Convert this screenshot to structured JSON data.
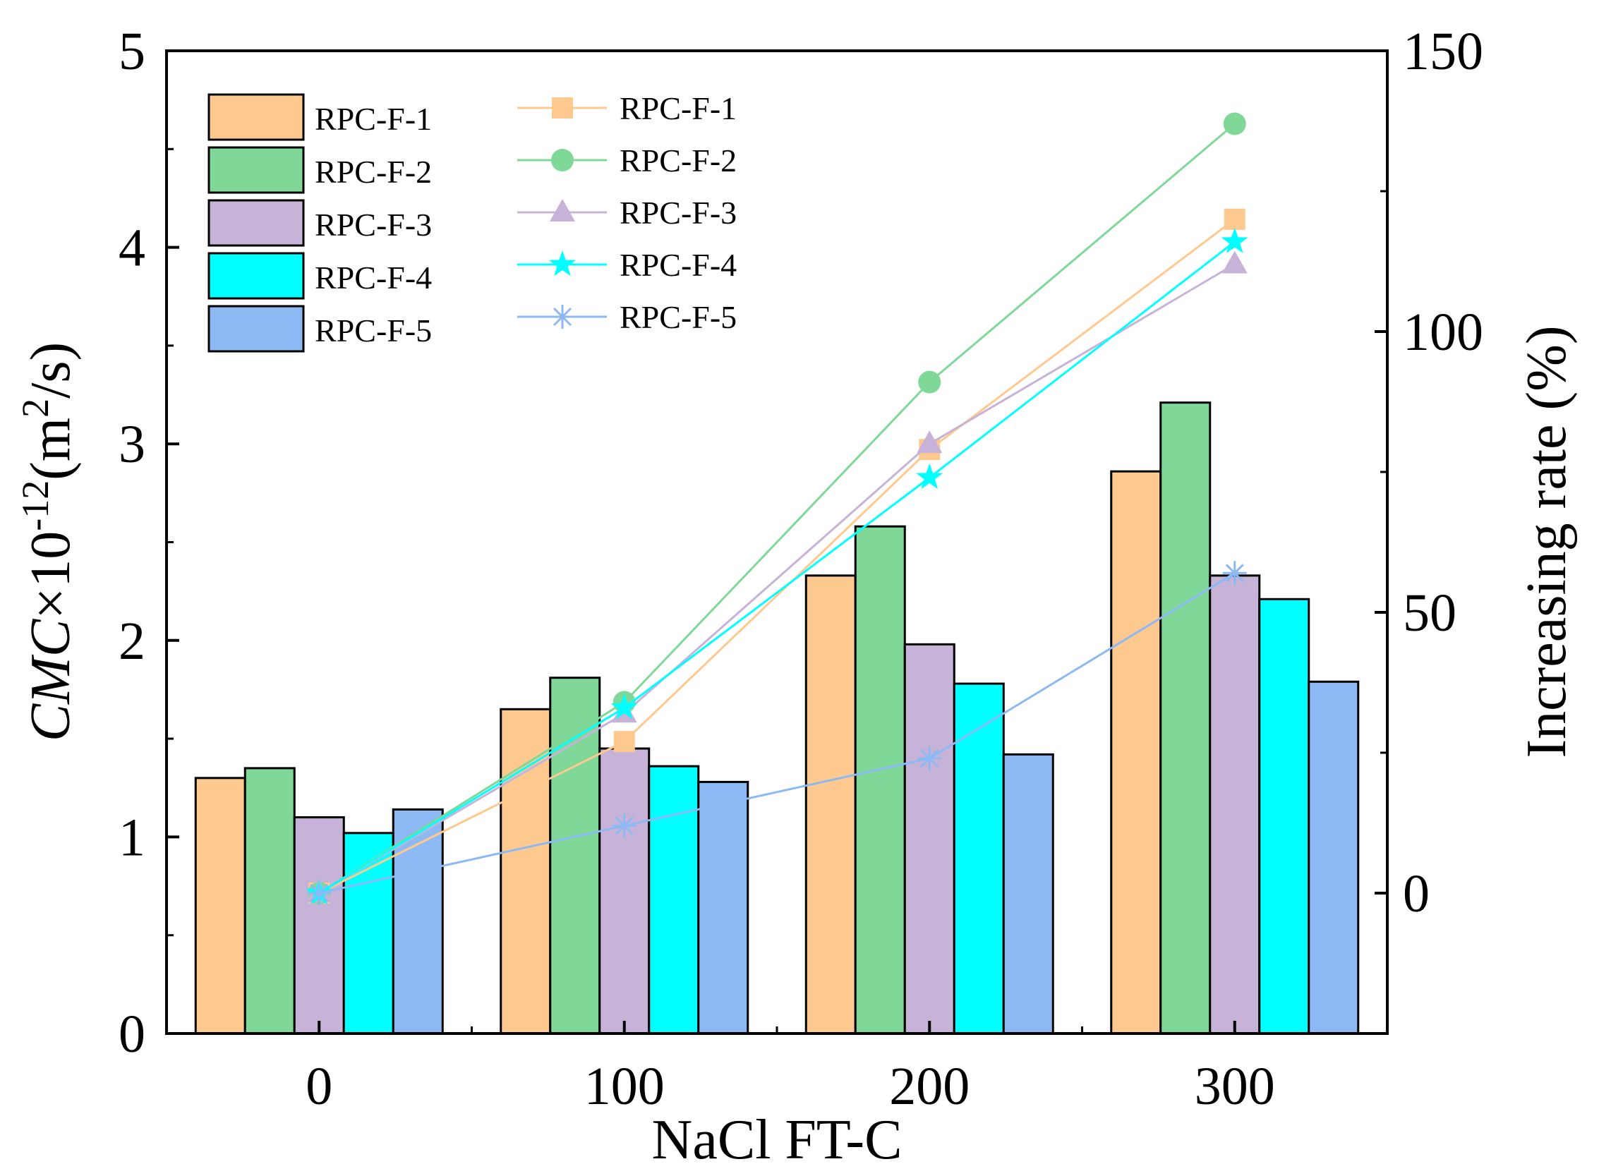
{
  "chart_data": {
    "type": "bar+line",
    "title": "",
    "xlabel": "NaCl FT-C",
    "ylabel": {
      "italic": "CMC",
      "prefix": "×10",
      "exponent": "-12",
      "unit_open": "(m",
      "unit_exp": "2",
      "unit_close": "/s)"
    },
    "y2label": "Increasing rate (%)",
    "categories": [
      "0",
      "100",
      "200",
      "300"
    ],
    "ylim": [
      0,
      5
    ],
    "yticks": [
      "0",
      "1",
      "2",
      "3",
      "4",
      "5"
    ],
    "y2lim": [
      -25,
      150
    ],
    "y2ticks": [
      "0",
      "50",
      "100",
      "150"
    ],
    "bar_series": [
      {
        "name": "RPC-F-1",
        "color": "#FEC98F",
        "values": [
          1.3,
          1.65,
          2.33,
          2.86
        ]
      },
      {
        "name": "RPC-F-2",
        "color": "#7FD898",
        "values": [
          1.35,
          1.81,
          2.58,
          3.21
        ]
      },
      {
        "name": "RPC-F-3",
        "color": "#C7B3D7",
        "values": [
          1.1,
          1.45,
          1.98,
          2.33
        ]
      },
      {
        "name": "RPC-F-4",
        "color": "#00FFFF",
        "values": [
          1.02,
          1.36,
          1.78,
          2.21
        ]
      },
      {
        "name": "RPC-F-5",
        "color": "#8CB9F3",
        "values": [
          1.14,
          1.28,
          1.42,
          1.79
        ]
      }
    ],
    "line_series": [
      {
        "name": "RPC-F-1",
        "color": "#FEC98F",
        "marker": "square",
        "values": [
          0,
          27,
          79,
          120
        ]
      },
      {
        "name": "RPC-F-2",
        "color": "#7FD898",
        "marker": "circle",
        "values": [
          0,
          34,
          91,
          137
        ]
      },
      {
        "name": "RPC-F-3",
        "color": "#C7B3D7",
        "marker": "triangle",
        "values": [
          0,
          32,
          80,
          112
        ]
      },
      {
        "name": "RPC-F-4",
        "color": "#00FFFF",
        "marker": "star",
        "values": [
          0,
          33,
          74,
          116
        ]
      },
      {
        "name": "RPC-F-5",
        "color": "#8CB9F3",
        "marker": "asterisk",
        "values": [
          0,
          12,
          24,
          57
        ]
      }
    ],
    "legend_bars_position": "top-left",
    "legend_lines_position": "top-center",
    "grid": false
  }
}
